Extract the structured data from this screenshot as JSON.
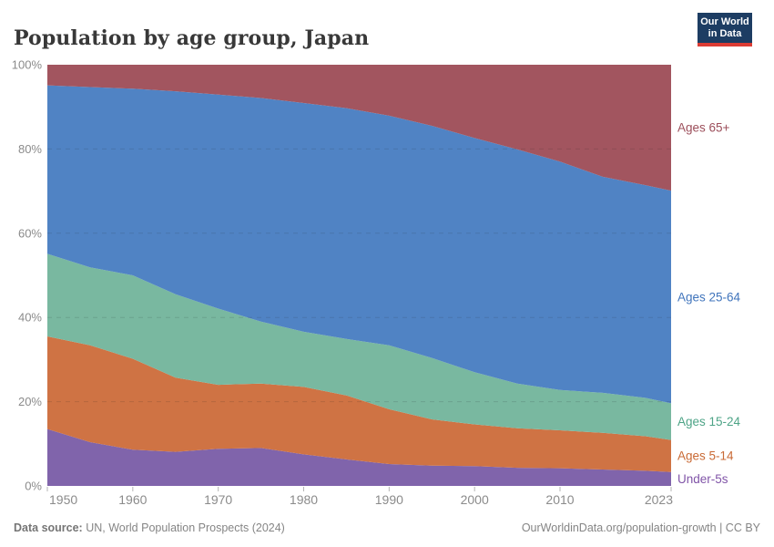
{
  "header": {
    "logo": {
      "line1": "Our World",
      "line2": "in Data"
    }
  },
  "chart_data": {
    "type": "area",
    "stacked_percent": true,
    "title": "Population by age group, Japan",
    "x": [
      1950,
      1955,
      1960,
      1965,
      1970,
      1975,
      1980,
      1985,
      1990,
      1995,
      2000,
      2005,
      2010,
      2015,
      2020,
      2023
    ],
    "x_ticks": [
      1950,
      1960,
      1970,
      1980,
      1990,
      2000,
      2010,
      2023
    ],
    "y_ticks": [
      0,
      20,
      40,
      60,
      80,
      100
    ],
    "y_tick_suffix": "%",
    "xlim": [
      1950,
      2023
    ],
    "ylim": [
      0,
      100
    ],
    "grid": "horizontal-dashed",
    "legend_position": "right",
    "series": [
      {
        "name": "Under-5s",
        "color": "#8064ab",
        "label_color": "#8155a8",
        "values": [
          13.5,
          10.4,
          8.6,
          8.1,
          8.8,
          9.0,
          7.5,
          6.3,
          5.2,
          4.8,
          4.7,
          4.3,
          4.2,
          3.9,
          3.6,
          3.3
        ]
      },
      {
        "name": "Ages 5-14",
        "color": "#cf7344",
        "label_color": "#c96a35",
        "values": [
          22.0,
          23.0,
          21.6,
          17.6,
          15.2,
          15.3,
          16.0,
          15.2,
          13.0,
          11.0,
          9.9,
          9.4,
          9.0,
          8.7,
          8.2,
          7.6
        ]
      },
      {
        "name": "Ages 15-24",
        "color": "#79b8a0",
        "label_color": "#4ea487",
        "values": [
          19.6,
          18.5,
          19.8,
          19.8,
          18.1,
          14.7,
          13.1,
          13.4,
          15.2,
          14.6,
          12.4,
          10.6,
          9.6,
          9.5,
          9.1,
          8.7
        ]
      },
      {
        "name": "Ages 25-64",
        "color": "#5083c4",
        "label_color": "#4175bc",
        "values": [
          40.0,
          42.8,
          44.3,
          48.2,
          50.8,
          53.1,
          54.3,
          54.8,
          54.5,
          55.1,
          55.6,
          55.6,
          54.2,
          51.3,
          50.5,
          50.5
        ]
      },
      {
        "name": "Ages 65+",
        "color": "#a2555f",
        "label_color": "#9c4f5b",
        "values": [
          4.9,
          5.3,
          5.7,
          6.3,
          7.1,
          7.9,
          9.1,
          10.3,
          12.1,
          14.5,
          17.4,
          20.1,
          23.0,
          26.6,
          28.6,
          29.9
        ]
      }
    ]
  },
  "footer": {
    "source_label": "Data source:",
    "source_text": "UN, World Population Prospects (2024)",
    "credit": "OurWorldinData.org/population-growth | CC BY"
  }
}
